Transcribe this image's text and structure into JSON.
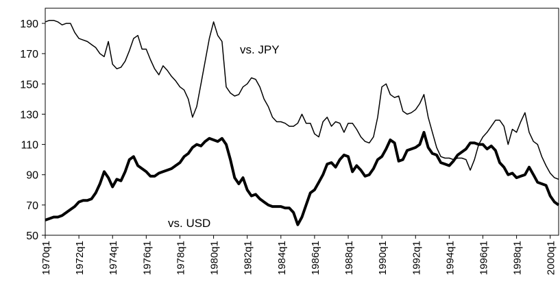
{
  "chart_data": {
    "type": "line",
    "categories": [
      "1970q1",
      null,
      null,
      null,
      null,
      null,
      null,
      null,
      "1972q1",
      null,
      null,
      null,
      null,
      null,
      null,
      null,
      "1974q1",
      null,
      null,
      null,
      null,
      null,
      null,
      null,
      "1976q1",
      null,
      null,
      null,
      null,
      null,
      null,
      null,
      "1978q1",
      null,
      null,
      null,
      null,
      null,
      null,
      null,
      "1980q1",
      null,
      null,
      null,
      null,
      null,
      null,
      null,
      "1982q1",
      null,
      null,
      null,
      null,
      null,
      null,
      null,
      "1984q1",
      null,
      null,
      null,
      null,
      null,
      null,
      null,
      "1986q1",
      null,
      null,
      null,
      null,
      null,
      null,
      null,
      "1988q1",
      null,
      null,
      null,
      null,
      null,
      null,
      null,
      "1990q1",
      null,
      null,
      null,
      null,
      null,
      null,
      null,
      "1992q1",
      null,
      null,
      null,
      null,
      null,
      null,
      null,
      "1994q1",
      null,
      null,
      null,
      null,
      null,
      null,
      null,
      "1996q1",
      null,
      null,
      null,
      null,
      null,
      null,
      null,
      "1998q1",
      null,
      null,
      null,
      null,
      null,
      null,
      null,
      "2000q1",
      null,
      null
    ],
    "series": [
      {
        "name": "vs. JPY",
        "color": "#000000",
        "width": 1.5,
        "values": [
          191,
          192,
          192,
          191,
          189,
          190,
          190,
          184,
          180,
          179,
          178,
          176,
          174,
          170,
          168,
          178,
          163,
          160,
          161,
          165,
          172,
          180,
          182,
          173,
          173,
          166,
          160,
          156,
          162,
          159,
          155,
          152,
          148,
          146,
          140,
          128,
          135,
          150,
          165,
          180,
          191,
          182,
          178,
          148,
          144,
          142,
          143,
          148,
          150,
          154,
          153,
          148,
          140,
          135,
          128,
          125,
          125,
          124,
          122,
          122,
          124,
          130,
          124,
          124,
          117,
          115,
          125,
          128,
          122,
          125,
          124,
          118,
          124,
          124,
          120,
          115,
          112,
          111,
          115,
          128,
          148,
          150,
          143,
          141,
          142,
          132,
          130,
          131,
          133,
          137,
          143,
          128,
          118,
          108,
          102,
          101,
          101,
          100,
          101,
          101,
          100,
          93,
          100,
          110,
          115,
          118,
          122,
          126,
          126,
          122,
          110,
          120,
          118,
          125,
          131,
          118,
          112,
          110,
          102,
          96,
          91,
          88,
          87
        ]
      },
      {
        "name": "vs. USD",
        "color": "#000000",
        "width": 4,
        "values": [
          60,
          61,
          62,
          62,
          63,
          65,
          67,
          69,
          72,
          73,
          73,
          74,
          78,
          84,
          92,
          88,
          82,
          87,
          86,
          92,
          100,
          102,
          96,
          94,
          92,
          89,
          89,
          91,
          92,
          93,
          94,
          96,
          98,
          102,
          104,
          108,
          110,
          109,
          112,
          114,
          113,
          112,
          114,
          110,
          100,
          88,
          84,
          88,
          80,
          76,
          77,
          74,
          72,
          70,
          69,
          69,
          69,
          68,
          68,
          65,
          57,
          62,
          70,
          78,
          80,
          85,
          90,
          97,
          98,
          95,
          100,
          103,
          102,
          92,
          96,
          93,
          89,
          90,
          94,
          100,
          102,
          107,
          113,
          111,
          99,
          100,
          106,
          107,
          108,
          110,
          118,
          108,
          104,
          103,
          98,
          97,
          96,
          99,
          103,
          105,
          107,
          111,
          111,
          110,
          110,
          107,
          109,
          106,
          98,
          95,
          90,
          91,
          88,
          89,
          90,
          95,
          90,
          85,
          84,
          83,
          76,
          72,
          70
        ]
      }
    ],
    "ylim": [
      50,
      200
    ],
    "yticks": [
      50,
      70,
      90,
      110,
      130,
      150,
      170,
      190
    ]
  }
}
